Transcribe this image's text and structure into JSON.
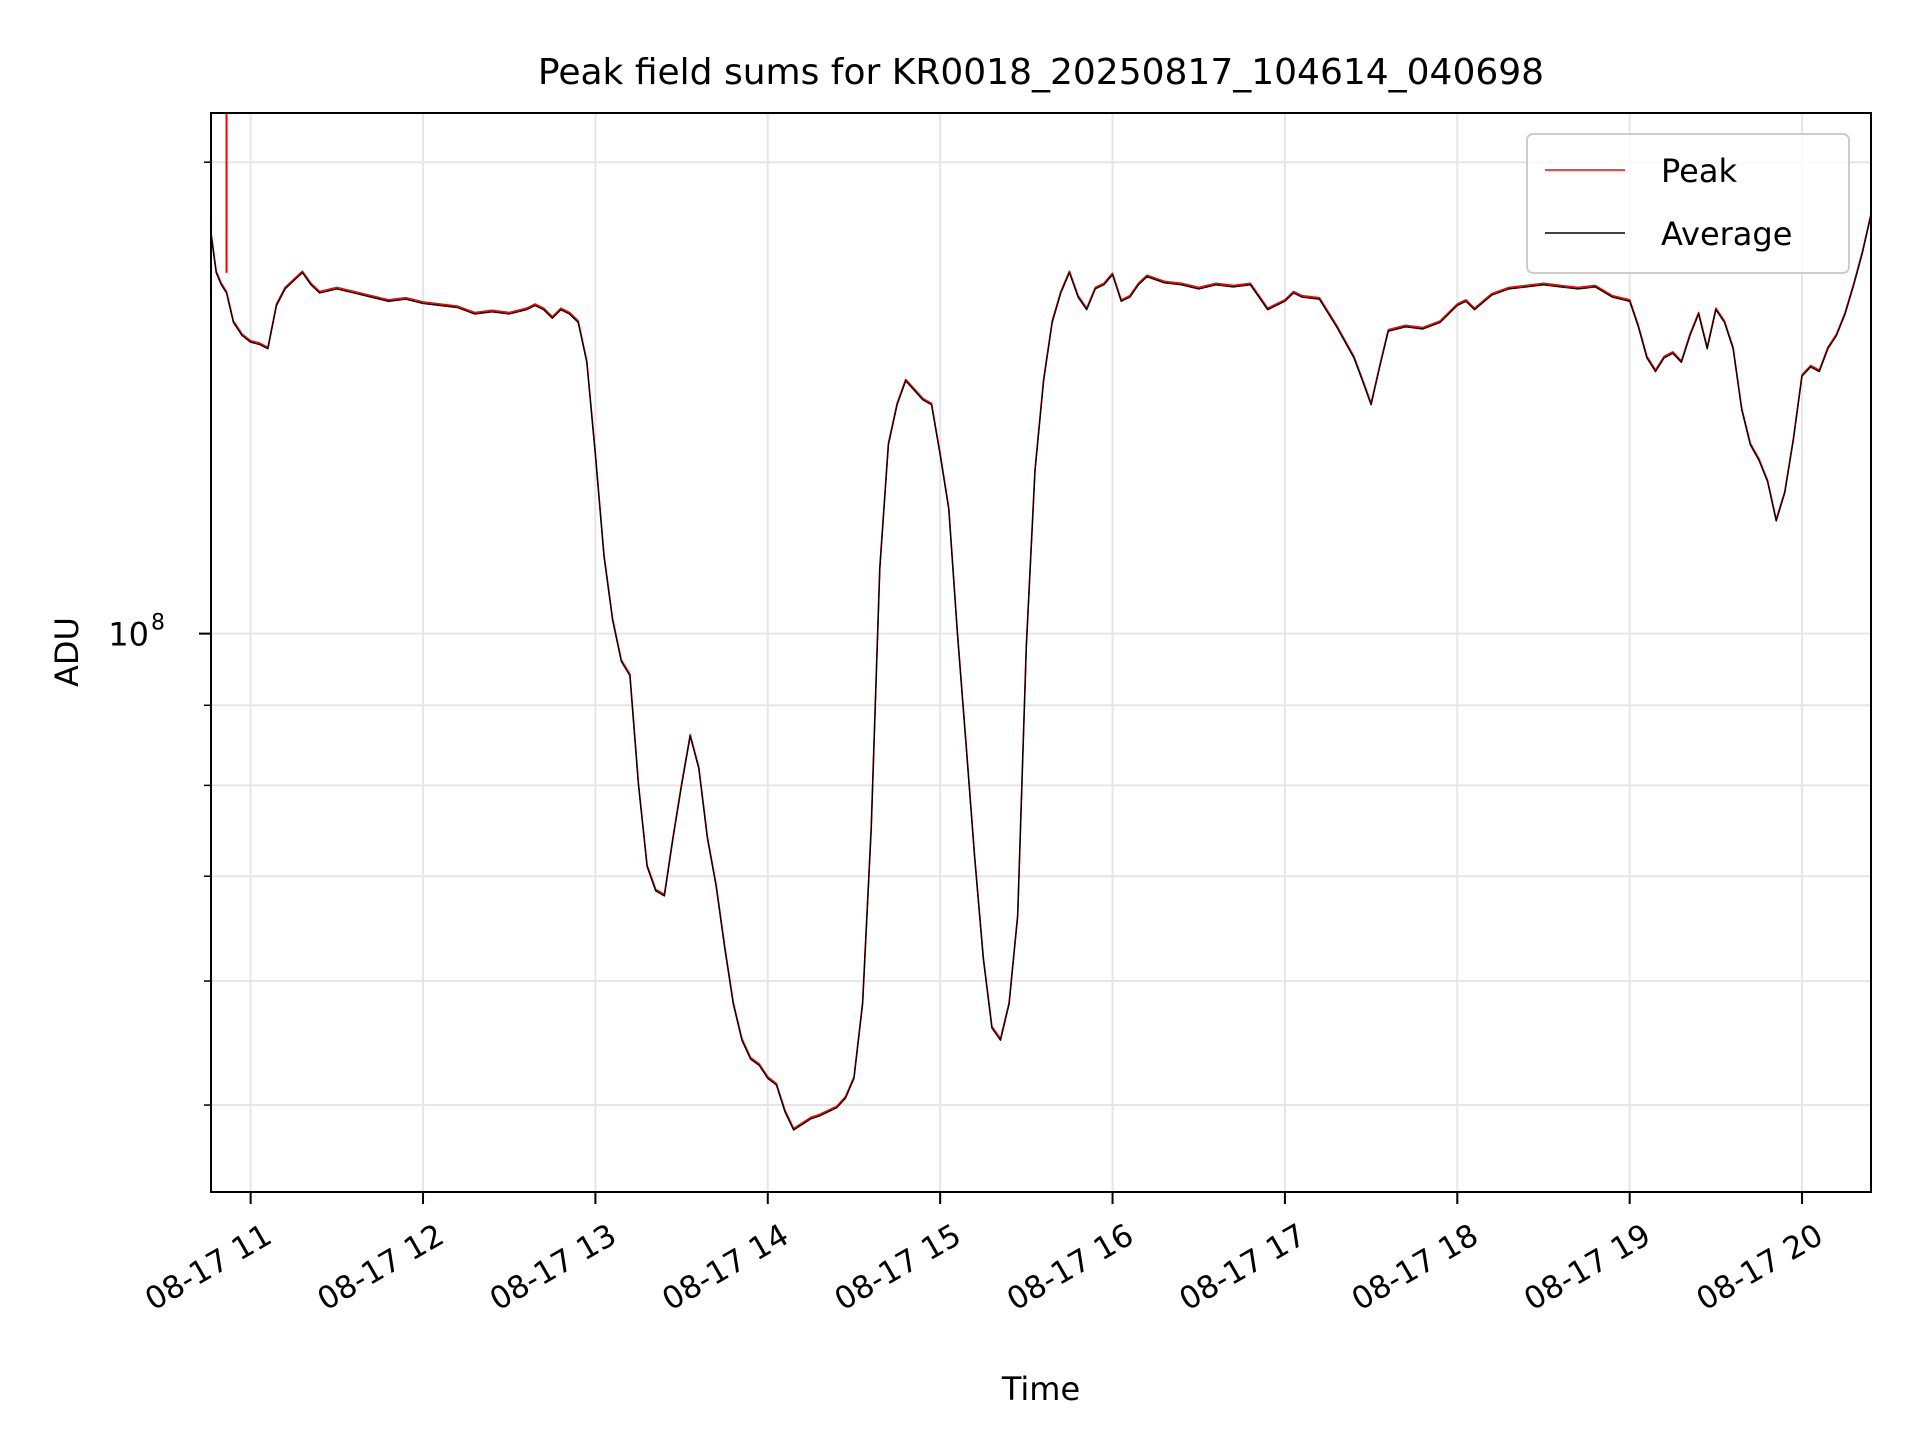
{
  "chart_data": {
    "type": "line",
    "title": "Peak field sums for KR0018_20250817_104614_040698",
    "xlabel": "Time",
    "ylabel": "ADU",
    "y_scale": "log",
    "x_unit": "hours, 2025-08-17",
    "xlim": [
      10.77,
      20.4
    ],
    "ylim": [
      44000000,
      215000000
    ],
    "x_ticks": [
      {
        "value": 11,
        "label": "08-17 11"
      },
      {
        "value": 12,
        "label": "08-17 12"
      },
      {
        "value": 13,
        "label": "08-17 13"
      },
      {
        "value": 14,
        "label": "08-17 14"
      },
      {
        "value": 15,
        "label": "08-17 15"
      },
      {
        "value": 16,
        "label": "08-17 16"
      },
      {
        "value": 17,
        "label": "08-17 17"
      },
      {
        "value": 18,
        "label": "08-17 18"
      },
      {
        "value": 19,
        "label": "08-17 19"
      },
      {
        "value": 20,
        "label": "08-17 20"
      }
    ],
    "y_major_ticks": [
      {
        "value": 100000000,
        "base": "10",
        "exp": "8"
      }
    ],
    "y_minor_ticks": [
      50000000,
      60000000,
      70000000,
      80000000,
      90000000,
      200000000
    ],
    "grid": true,
    "legend_placement": "top-right",
    "series": [
      {
        "name": "Peak",
        "color": "#ff0000",
        "values_follow": "Average",
        "spike": {
          "x": 10.86,
          "y_min": 170000000,
          "y_max": 215000000
        }
      },
      {
        "name": "Average",
        "color": "#000000",
        "points": [
          [
            10.77,
            180000000
          ],
          [
            10.8,
            170000000
          ],
          [
            10.83,
            167000000
          ],
          [
            10.86,
            165000000
          ],
          [
            10.9,
            158000000
          ],
          [
            10.95,
            155000000
          ],
          [
            11.0,
            153500000
          ],
          [
            11.05,
            153000000
          ],
          [
            11.1,
            152000000
          ],
          [
            11.15,
            162000000
          ],
          [
            11.2,
            166000000
          ],
          [
            11.25,
            168000000
          ],
          [
            11.3,
            170000000
          ],
          [
            11.35,
            167000000
          ],
          [
            11.4,
            165000000
          ],
          [
            11.5,
            166000000
          ],
          [
            11.6,
            165000000
          ],
          [
            11.7,
            164000000
          ],
          [
            11.8,
            163000000
          ],
          [
            11.9,
            163500000
          ],
          [
            12.0,
            162500000
          ],
          [
            12.1,
            162000000
          ],
          [
            12.2,
            161500000
          ],
          [
            12.3,
            160000000
          ],
          [
            12.4,
            160500000
          ],
          [
            12.5,
            160000000
          ],
          [
            12.6,
            161000000
          ],
          [
            12.65,
            162000000
          ],
          [
            12.7,
            161000000
          ],
          [
            12.75,
            159000000
          ],
          [
            12.8,
            161000000
          ],
          [
            12.85,
            160000000
          ],
          [
            12.9,
            158000000
          ],
          [
            12.95,
            149000000
          ],
          [
            13.0,
            130000000
          ],
          [
            13.05,
            112000000
          ],
          [
            13.1,
            102000000
          ],
          [
            13.15,
            96000000
          ],
          [
            13.2,
            94000000
          ],
          [
            13.25,
            80000000
          ],
          [
            13.3,
            71000000
          ],
          [
            13.35,
            68500000
          ],
          [
            13.4,
            68000000
          ],
          [
            13.45,
            74000000
          ],
          [
            13.5,
            80000000
          ],
          [
            13.55,
            86000000
          ],
          [
            13.6,
            82000000
          ],
          [
            13.65,
            74000000
          ],
          [
            13.7,
            69000000
          ],
          [
            13.75,
            63000000
          ],
          [
            13.8,
            58000000
          ],
          [
            13.85,
            55000000
          ],
          [
            13.9,
            53500000
          ],
          [
            13.95,
            53000000
          ],
          [
            14.0,
            52000000
          ],
          [
            14.05,
            51500000
          ],
          [
            14.1,
            49500000
          ],
          [
            14.15,
            48200000
          ],
          [
            14.2,
            48600000
          ],
          [
            14.25,
            49000000
          ],
          [
            14.3,
            49200000
          ],
          [
            14.35,
            49500000
          ],
          [
            14.4,
            49800000
          ],
          [
            14.45,
            50500000
          ],
          [
            14.5,
            52000000
          ],
          [
            14.55,
            58000000
          ],
          [
            14.6,
            75000000
          ],
          [
            14.65,
            110000000
          ],
          [
            14.7,
            132000000
          ],
          [
            14.75,
            140000000
          ],
          [
            14.8,
            145000000
          ],
          [
            14.85,
            143000000
          ],
          [
            14.9,
            141000000
          ],
          [
            14.95,
            140000000
          ],
          [
            15.0,
            130000000
          ],
          [
            15.05,
            120000000
          ],
          [
            15.1,
            100000000
          ],
          [
            15.15,
            85000000
          ],
          [
            15.2,
            72000000
          ],
          [
            15.25,
            62000000
          ],
          [
            15.3,
            56000000
          ],
          [
            15.35,
            55000000
          ],
          [
            15.4,
            58000000
          ],
          [
            15.45,
            66000000
          ],
          [
            15.5,
            98000000
          ],
          [
            15.55,
            127000000
          ],
          [
            15.6,
            145000000
          ],
          [
            15.65,
            158000000
          ],
          [
            15.7,
            165000000
          ],
          [
            15.75,
            170000000
          ],
          [
            15.8,
            164000000
          ],
          [
            15.85,
            161000000
          ],
          [
            15.9,
            166000000
          ],
          [
            15.95,
            167000000
          ],
          [
            16.0,
            169500000
          ],
          [
            16.05,
            163000000
          ],
          [
            16.1,
            164000000
          ],
          [
            16.15,
            167000000
          ],
          [
            16.2,
            169000000
          ],
          [
            16.3,
            167500000
          ],
          [
            16.4,
            167000000
          ],
          [
            16.5,
            166000000
          ],
          [
            16.6,
            167000000
          ],
          [
            16.7,
            166500000
          ],
          [
            16.8,
            167000000
          ],
          [
            16.9,
            161000000
          ],
          [
            17.0,
            163000000
          ],
          [
            17.05,
            165000000
          ],
          [
            17.1,
            164000000
          ],
          [
            17.2,
            163500000
          ],
          [
            17.3,
            157000000
          ],
          [
            17.4,
            150000000
          ],
          [
            17.45,
            145000000
          ],
          [
            17.5,
            140000000
          ],
          [
            17.55,
            148000000
          ],
          [
            17.6,
            156000000
          ],
          [
            17.7,
            157000000
          ],
          [
            17.8,
            156500000
          ],
          [
            17.9,
            158000000
          ],
          [
            18.0,
            162000000
          ],
          [
            18.05,
            163000000
          ],
          [
            18.1,
            161000000
          ],
          [
            18.2,
            164500000
          ],
          [
            18.3,
            166000000
          ],
          [
            18.4,
            166500000
          ],
          [
            18.5,
            167000000
          ],
          [
            18.6,
            166500000
          ],
          [
            18.7,
            166000000
          ],
          [
            18.8,
            166500000
          ],
          [
            18.9,
            164000000
          ],
          [
            19.0,
            163000000
          ],
          [
            19.05,
            157000000
          ],
          [
            19.1,
            150000000
          ],
          [
            19.15,
            147000000
          ],
          [
            19.2,
            150000000
          ],
          [
            19.25,
            151000000
          ],
          [
            19.3,
            149000000
          ],
          [
            19.35,
            155000000
          ],
          [
            19.4,
            160000000
          ],
          [
            19.45,
            152000000
          ],
          [
            19.5,
            161000000
          ],
          [
            19.55,
            158000000
          ],
          [
            19.6,
            152000000
          ],
          [
            19.65,
            139000000
          ],
          [
            19.7,
            132000000
          ],
          [
            19.75,
            129000000
          ],
          [
            19.8,
            125000000
          ],
          [
            19.85,
            118000000
          ],
          [
            19.9,
            123000000
          ],
          [
            19.95,
            133000000
          ],
          [
            20.0,
            146000000
          ],
          [
            20.05,
            148000000
          ],
          [
            20.1,
            147000000
          ],
          [
            20.15,
            152000000
          ],
          [
            20.2,
            155000000
          ],
          [
            20.25,
            160000000
          ],
          [
            20.3,
            167000000
          ],
          [
            20.35,
            175000000
          ],
          [
            20.4,
            185000000
          ]
        ]
      }
    ]
  }
}
